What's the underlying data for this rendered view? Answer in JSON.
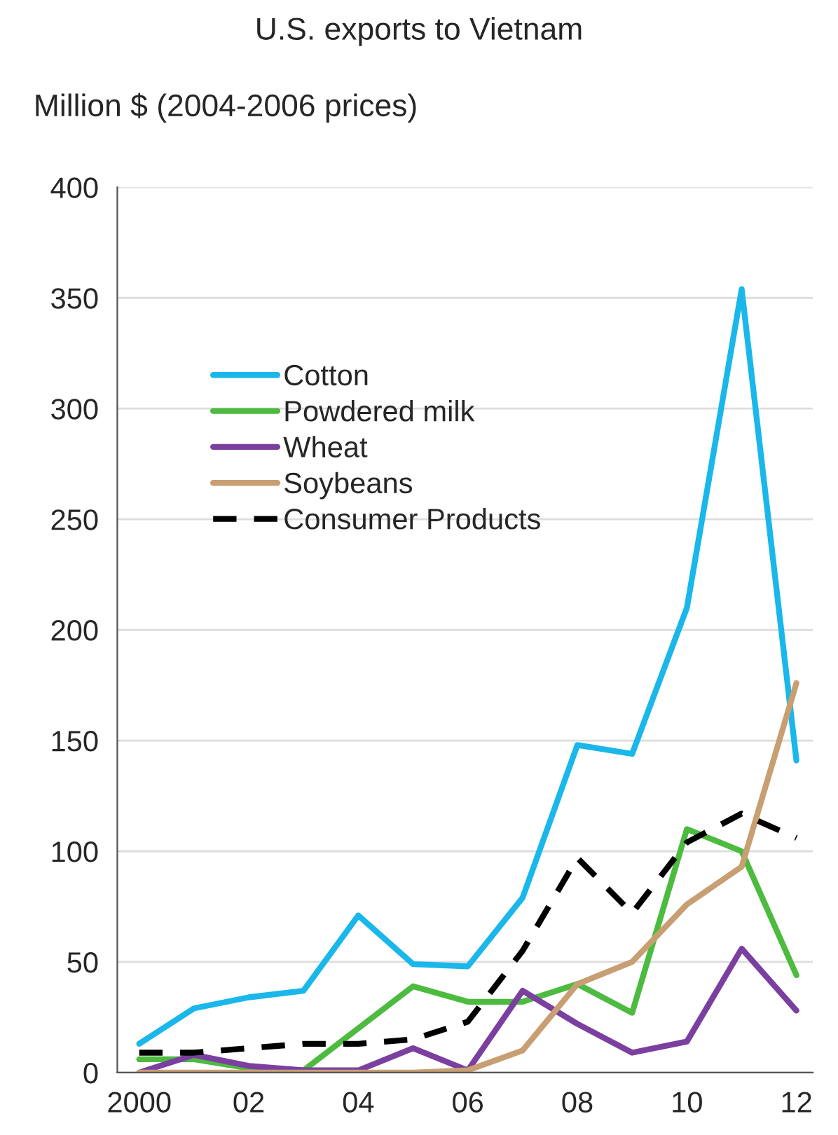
{
  "chart_data": {
    "type": "line",
    "title": "U.S. exports to Vietnam",
    "ylabel": "Million $ (2004-2006 prices)",
    "x": [
      2000,
      2001,
      2002,
      2003,
      2004,
      2005,
      2006,
      2007,
      2008,
      2009,
      2010,
      2011,
      2012
    ],
    "series": [
      {
        "name": "Cotton",
        "color": "#1ab7ea",
        "values": [
          13,
          29,
          34,
          37,
          71,
          49,
          48,
          79,
          148,
          144,
          210,
          354,
          141
        ]
      },
      {
        "name": "Powdered milk",
        "color": "#4cbb3f",
        "values": [
          6,
          6,
          2,
          1,
          20,
          39,
          32,
          32,
          40,
          27,
          110,
          100,
          44
        ]
      },
      {
        "name": "Wheat",
        "color": "#7b3fa0",
        "values": [
          0,
          8,
          3,
          1,
          1,
          11,
          1,
          37,
          22,
          9,
          14,
          56,
          28
        ]
      },
      {
        "name": "Soybeans",
        "color": "#c89f72",
        "values": [
          0,
          0,
          0,
          0,
          0,
          0,
          1,
          10,
          40,
          50,
          76,
          93,
          176
        ]
      },
      {
        "name": "Consumer Products",
        "color": "#000000",
        "line_style": "dashed",
        "values": [
          9,
          9,
          11,
          13,
          13,
          15,
          23,
          55,
          97,
          72,
          104,
          117,
          106
        ]
      }
    ],
    "xlim": [
      1999.6,
      2012.3
    ],
    "xticks": [
      2000,
      {
        "value": 2002,
        "label": "02"
      },
      {
        "value": 2004,
        "label": "04"
      },
      {
        "value": 2006,
        "label": "06"
      },
      {
        "value": 2008,
        "label": "08"
      },
      {
        "value": 2010,
        "label": "10"
      },
      {
        "value": 2012,
        "label": "12"
      }
    ],
    "ylim": [
      0,
      400
    ],
    "yticks": [
      0,
      50,
      100,
      150,
      200,
      250,
      300,
      350,
      400
    ],
    "grid": "y",
    "legend": "top left",
    "marker": "none",
    "line_style": "solid"
  }
}
